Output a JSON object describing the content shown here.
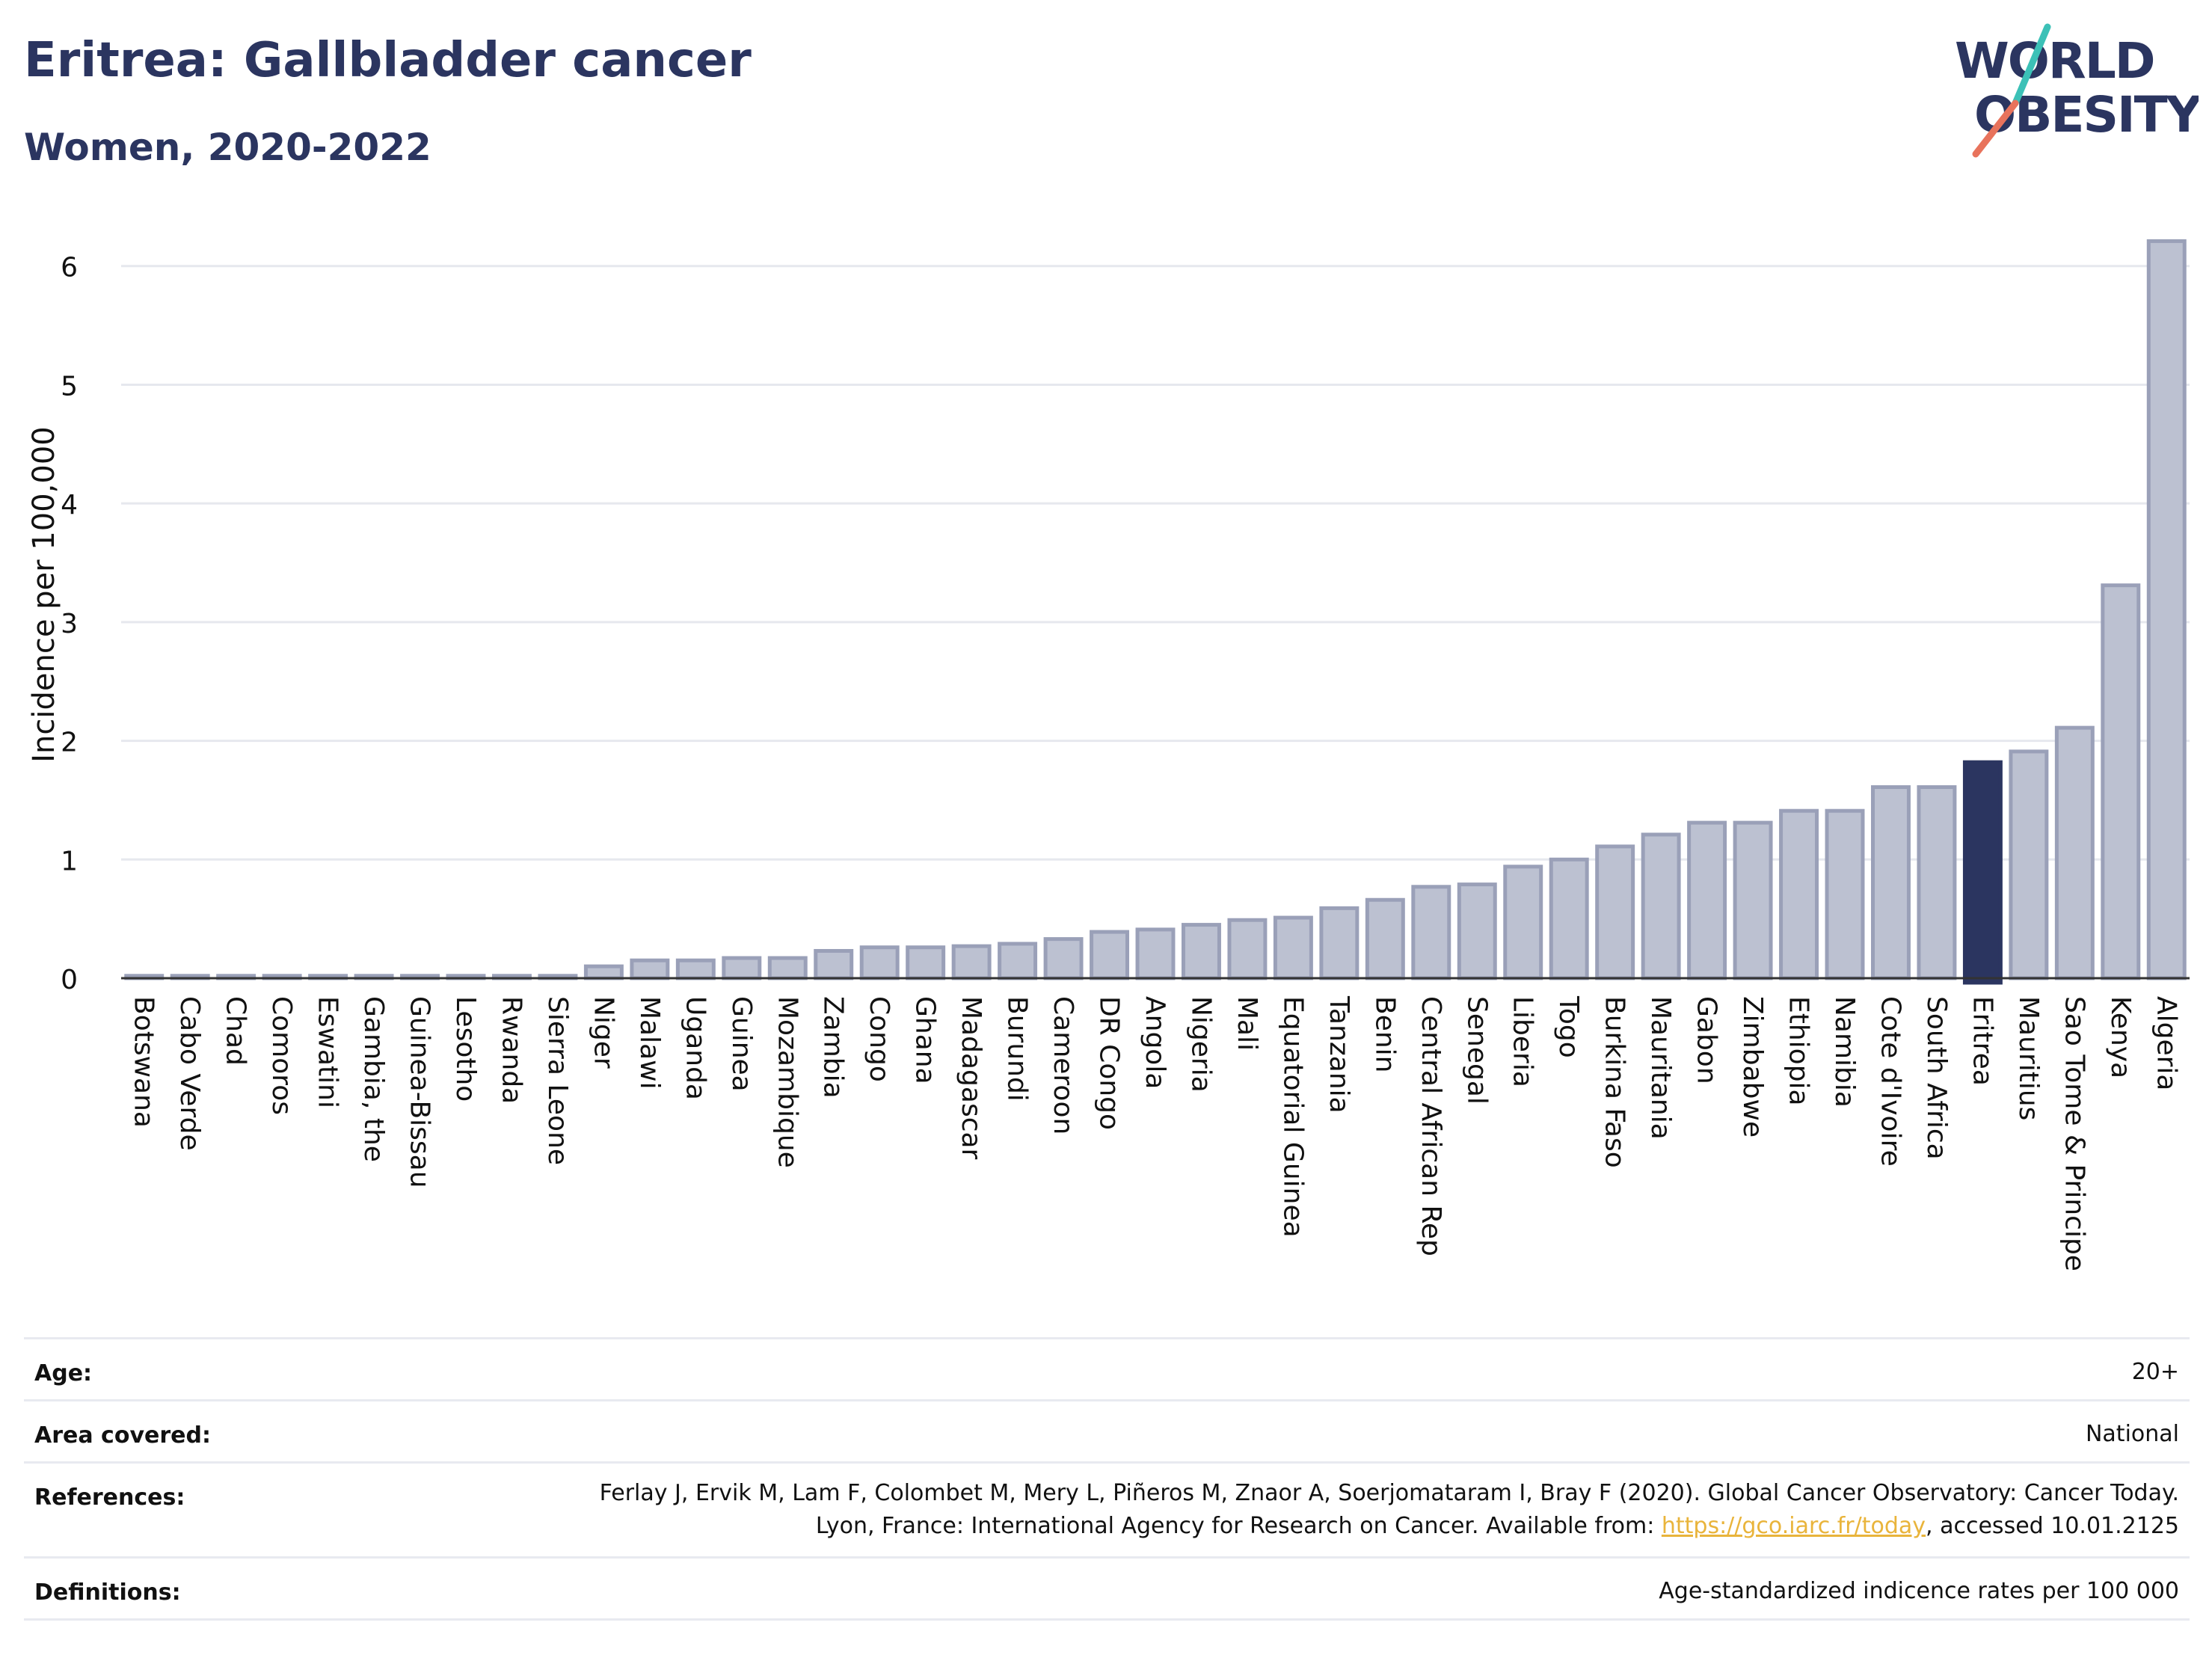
{
  "header": {
    "title": "Eritrea: Gallbladder cancer",
    "subtitle": "Women, 2020-2022"
  },
  "logo": {
    "line1": "WORLD",
    "line2": "OBESITY",
    "name": "world-obesity-logo"
  },
  "colors": {
    "bar": "#bcc1d1",
    "bar_border": "#9aa0b8",
    "highlight": "#2b3560",
    "grid": "#e6e8ee",
    "axis": "#333333",
    "link": "#e9b43b"
  },
  "chart_data": {
    "type": "bar",
    "ylabel": "Incidence per 100,000",
    "ylim": [
      0,
      6.2
    ],
    "yticks": [
      0,
      1,
      2,
      3,
      4,
      5,
      6
    ],
    "highlight": "Eritrea",
    "categories": [
      "Botswana",
      "Cabo Verde",
      "Chad",
      "Comoros",
      "Eswatini",
      "Gambia, the",
      "Guinea-Bissau",
      "Lesotho",
      "Rwanda",
      "Sierra Leone",
      "Niger",
      "Malawi",
      "Uganda",
      "Guinea",
      "Mozambique",
      "Zambia",
      "Congo",
      "Ghana",
      "Madagascar",
      "Burundi",
      "Cameroon",
      "DR Congo",
      "Angola",
      "Nigeria",
      "Mali",
      "Equatorial Guinea",
      "Tanzania",
      "Benin",
      "Central African Rep",
      "Senegal",
      "Liberia",
      "Togo",
      "Burkina Faso",
      "Mauritania",
      "Gabon",
      "Zimbabwe",
      "Ethiopia",
      "Namibia",
      "Cote d'Ivoire",
      "South Africa",
      "Eritrea",
      "Mauritius",
      "Sao Tome & Principe",
      "Kenya",
      "Algeria"
    ],
    "values": [
      0.02,
      0.02,
      0.02,
      0.02,
      0.02,
      0.02,
      0.02,
      0.02,
      0.02,
      0.02,
      0.1,
      0.15,
      0.15,
      0.17,
      0.17,
      0.23,
      0.26,
      0.26,
      0.27,
      0.29,
      0.33,
      0.39,
      0.41,
      0.45,
      0.49,
      0.51,
      0.59,
      0.66,
      0.77,
      0.79,
      0.94,
      1.0,
      1.11,
      1.21,
      1.31,
      1.31,
      1.41,
      1.41,
      1.61,
      1.61,
      1.82,
      1.91,
      2.11,
      3.31,
      6.21
    ]
  },
  "meta": {
    "age_label": "Age:",
    "age_value": "20+",
    "area_label": "Area covered:",
    "area_value": "National",
    "references_label": "References:",
    "references_text": "Ferlay J, Ervik M, Lam F, Colombet M, Mery L, Piñeros M, Znaor A, Soerjomataram I, Bray F (2020). Global Cancer Observatory: Cancer Today. Lyon, France: International Agency for Research on Cancer. Available from: ",
    "references_link": "https://gco.iarc.fr/today",
    "references_tail": ", accessed 10.01.2125",
    "definitions_label": "Definitions:",
    "definitions_value": "Age-standardized indicence rates per 100 000"
  }
}
